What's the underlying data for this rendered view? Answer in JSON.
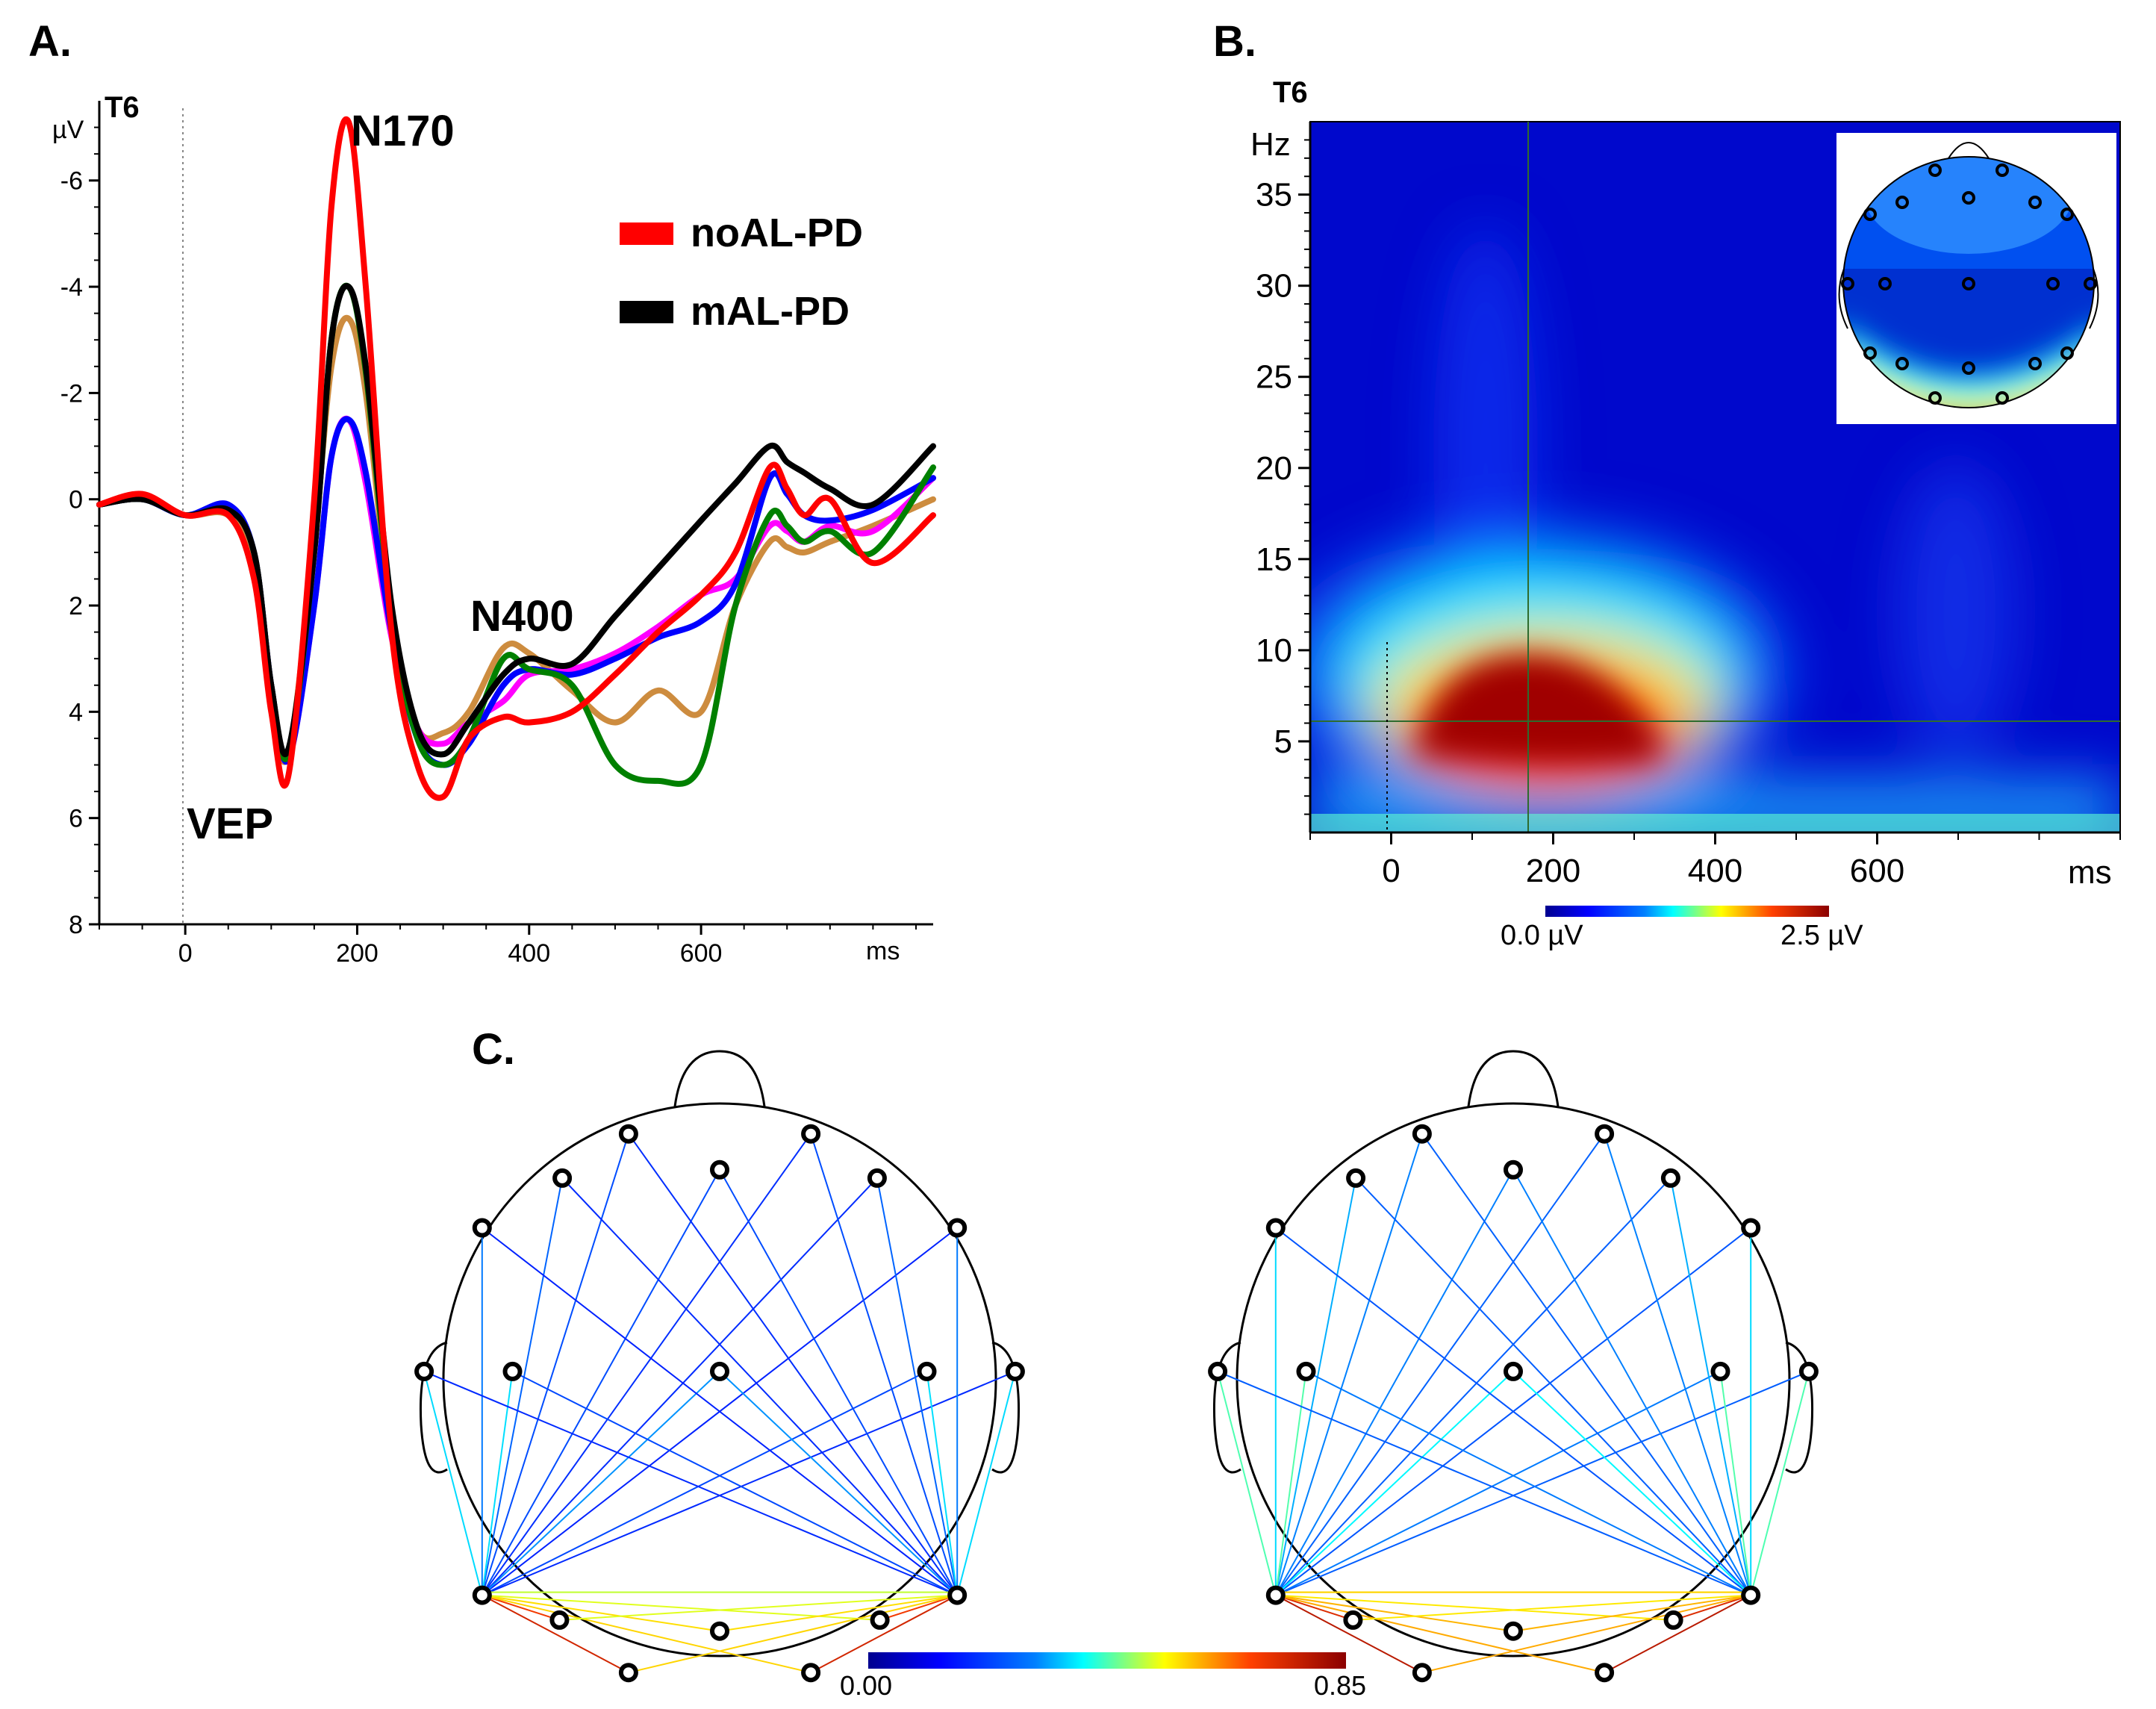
{
  "panels": {
    "a": "A.",
    "b": "B.",
    "c": "C."
  },
  "chart_data": [
    {
      "type": "line",
      "panel": "A.",
      "channel": "T6",
      "ylabel": "µV",
      "xunit": "ms",
      "ylim": [
        8,
        -7.5
      ],
      "xlim": [
        -100,
        870
      ],
      "yticks": [
        -6,
        -4,
        -2,
        0,
        2,
        4,
        6,
        8
      ],
      "ytick_labels": [
        "-6",
        "-4",
        "-2",
        "0",
        "2",
        "4",
        "6",
        "8"
      ],
      "xticks": [
        0,
        200,
        400,
        600
      ],
      "xtick_labels": [
        "0",
        "200",
        "400",
        "600"
      ],
      "annotations": [
        "N170",
        "N400",
        "VEP"
      ],
      "legend": [
        {
          "label": "noAL-PD",
          "color": "#ff0000"
        },
        {
          "label": "mAL-PD",
          "color": "#000000"
        }
      ],
      "x": [
        -100,
        -50,
        0,
        50,
        80,
        100,
        120,
        150,
        170,
        190,
        210,
        240,
        270,
        300,
        330,
        370,
        400,
        450,
        500,
        550,
        600,
        640,
        680,
        700,
        720,
        750,
        800,
        870
      ],
      "series": [
        {
          "color": "#ff0000",
          "values": [
            0.1,
            -0.1,
            0.3,
            0.3,
            1.5,
            4.0,
            5.2,
            0.0,
            -5.5,
            -7.1,
            -4.0,
            2.5,
            5.0,
            5.6,
            4.5,
            4.1,
            4.2,
            4.0,
            3.3,
            2.5,
            1.8,
            1.0,
            -0.6,
            -0.2,
            0.3,
            0.0,
            1.2,
            0.3
          ]
        },
        {
          "color": "#000000",
          "values": [
            0.1,
            0.0,
            0.3,
            0.2,
            1.0,
            3.5,
            4.7,
            1.0,
            -3.0,
            -4.0,
            -2.5,
            2.0,
            4.3,
            4.8,
            4.2,
            3.3,
            3.0,
            3.1,
            2.2,
            1.3,
            0.4,
            -0.3,
            -1.0,
            -0.7,
            -0.5,
            -0.2,
            0.1,
            -1.0
          ]
        },
        {
          "color": "#008000",
          "values": [
            0.1,
            0.0,
            0.3,
            0.2,
            1.0,
            3.5,
            4.8,
            1.0,
            -3.0,
            -4.0,
            -2.4,
            2.2,
            4.5,
            5.0,
            4.5,
            3.0,
            3.2,
            3.5,
            5.0,
            5.3,
            5.0,
            2.0,
            0.3,
            0.5,
            0.8,
            0.6,
            1.0,
            -0.6
          ]
        },
        {
          "color": "#0000ff",
          "values": [
            0.1,
            0.0,
            0.3,
            0.1,
            1.0,
            3.5,
            4.9,
            2.0,
            -0.8,
            -1.5,
            -0.5,
            2.5,
            4.5,
            5.0,
            4.6,
            3.5,
            3.2,
            3.3,
            3.0,
            2.6,
            2.3,
            1.6,
            -0.4,
            -0.1,
            0.3,
            0.4,
            0.2,
            -0.4
          ]
        },
        {
          "color": "#ff00ff",
          "values": [
            0.1,
            0.0,
            0.3,
            0.2,
            1.0,
            3.5,
            4.9,
            2.0,
            -0.8,
            -1.5,
            -0.3,
            2.6,
            4.3,
            4.6,
            4.2,
            3.8,
            3.3,
            3.2,
            2.9,
            2.4,
            1.8,
            1.5,
            0.5,
            0.6,
            0.8,
            0.5,
            0.6,
            -0.4
          ]
        },
        {
          "color": "#cd8c3f",
          "values": [
            0.1,
            0.0,
            0.3,
            0.3,
            1.2,
            3.8,
            4.8,
            0.8,
            -2.5,
            -3.4,
            -2.0,
            2.3,
            4.3,
            4.4,
            4.0,
            2.8,
            2.9,
            3.6,
            4.2,
            3.6,
            4.0,
            2.0,
            0.8,
            0.9,
            1.0,
            0.8,
            0.5,
            0.0
          ]
        }
      ]
    },
    {
      "type": "heatmap",
      "panel": "B.",
      "channel": "T6",
      "ylabel": "Hz",
      "xunit": "ms",
      "xlim": [
        -100,
        900
      ],
      "ylim": [
        0,
        39
      ],
      "xticks": [
        0,
        200,
        400,
        600
      ],
      "xtick_labels": [
        "0",
        "200",
        "400",
        "600"
      ],
      "yticks": [
        5,
        10,
        15,
        20,
        25,
        30,
        35
      ],
      "ytick_labels": [
        "5",
        "10",
        "15",
        "20",
        "25",
        "30",
        "35"
      ],
      "peak": {
        "time_ms": 170,
        "freq_hz": 6.5
      },
      "colorbar": {
        "min_label": "0.0 µV",
        "max_label": "2.5 µV",
        "min": 0.0,
        "max": 2.5
      },
      "colormap": [
        "#00008f",
        "#0050ff",
        "#00ffff",
        "#ffff00",
        "#ff4000",
        "#8b0000"
      ]
    },
    {
      "type": "network",
      "panel": "C.",
      "colorbar": {
        "min_label": "0.00",
        "max_label": "0.85",
        "min": 0.0,
        "max": 0.85
      }
    }
  ]
}
